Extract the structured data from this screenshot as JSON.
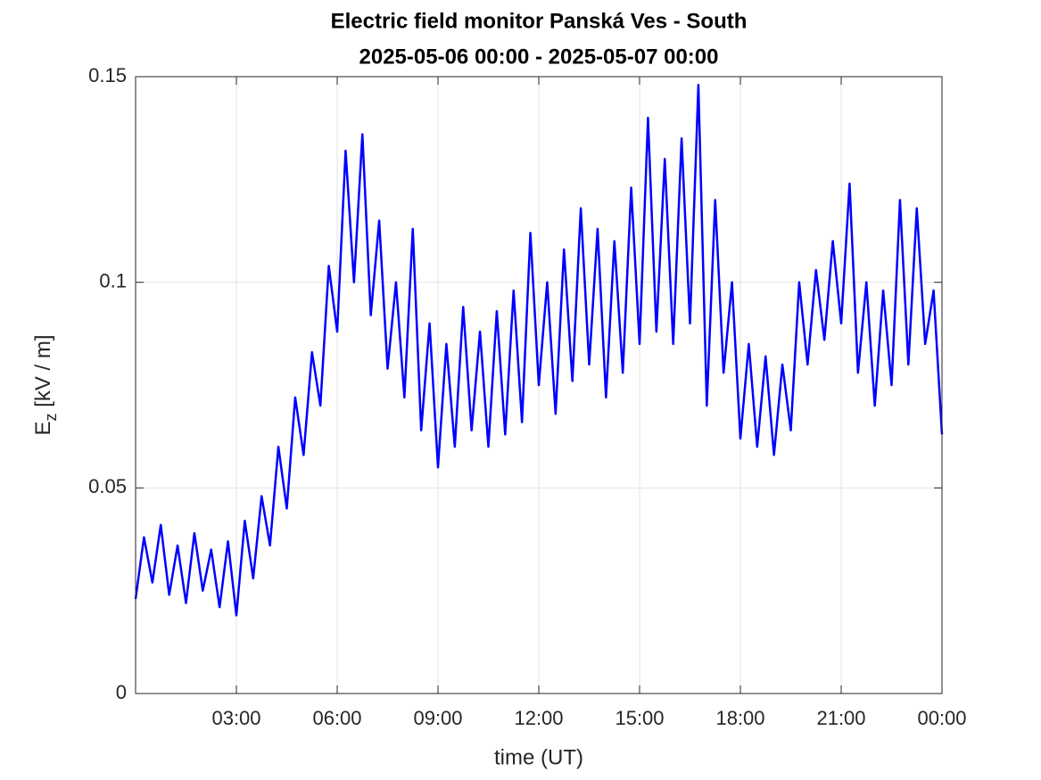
{
  "chart_data": {
    "type": "line",
    "title": "Electric field monitor Panská Ves - South",
    "subtitle": "2025-05-06 00:00 - 2025-05-07 00:00",
    "xlabel": "time (UT)",
    "ylabel": [
      "E",
      "z",
      " [kV / m]"
    ],
    "xlim": [
      0,
      24
    ],
    "xticks": [
      {
        "value": 3,
        "label": "03:00"
      },
      {
        "value": 6,
        "label": "06:00"
      },
      {
        "value": 9,
        "label": "09:00"
      },
      {
        "value": 12,
        "label": "12:00"
      },
      {
        "value": 15,
        "label": "15:00"
      },
      {
        "value": 18,
        "label": "18:00"
      },
      {
        "value": 21,
        "label": "21:00"
      },
      {
        "value": 24,
        "label": "00:00"
      }
    ],
    "ylim": [
      0,
      0.15
    ],
    "yticks": [
      0,
      0.05,
      0.1,
      0.15
    ],
    "grid": true,
    "x": [
      0,
      0.25,
      0.5,
      0.75,
      1,
      1.25,
      1.5,
      1.75,
      2,
      2.25,
      2.5,
      2.75,
      3,
      3.25,
      3.5,
      3.75,
      4,
      4.25,
      4.5,
      4.75,
      5,
      5.25,
      5.5,
      5.75,
      6,
      6.25,
      6.5,
      6.75,
      7,
      7.25,
      7.5,
      7.75,
      8,
      8.25,
      8.5,
      8.75,
      9,
      9.25,
      9.5,
      9.75,
      10,
      10.25,
      10.5,
      10.75,
      11,
      11.25,
      11.5,
      11.75,
      12,
      12.25,
      12.5,
      12.75,
      13,
      13.25,
      13.5,
      13.75,
      14,
      14.25,
      14.5,
      14.75,
      15,
      15.25,
      15.5,
      15.75,
      16,
      16.25,
      16.5,
      16.75,
      17,
      17.25,
      17.5,
      17.75,
      18,
      18.25,
      18.5,
      18.75,
      19,
      19.25,
      19.5,
      19.75,
      20,
      20.25,
      20.5,
      20.75,
      21,
      21.25,
      21.5,
      21.75,
      22,
      22.25,
      22.5,
      22.75,
      23,
      23.25,
      23.5,
      23.75,
      24
    ],
    "series": [
      {
        "color": "#0000ff",
        "values": [
          0.023,
          0.038,
          0.027,
          0.041,
          0.024,
          0.036,
          0.022,
          0.039,
          0.025,
          0.035,
          0.021,
          0.037,
          0.019,
          0.042,
          0.028,
          0.048,
          0.036,
          0.06,
          0.045,
          0.072,
          0.058,
          0.083,
          0.07,
          0.104,
          0.088,
          0.132,
          0.1,
          0.136,
          0.092,
          0.115,
          0.079,
          0.1,
          0.072,
          0.113,
          0.064,
          0.09,
          0.055,
          0.085,
          0.06,
          0.094,
          0.064,
          0.088,
          0.06,
          0.093,
          0.063,
          0.098,
          0.066,
          0.112,
          0.075,
          0.1,
          0.068,
          0.108,
          0.076,
          0.118,
          0.08,
          0.113,
          0.072,
          0.11,
          0.078,
          0.123,
          0.085,
          0.14,
          0.088,
          0.13,
          0.085,
          0.135,
          0.09,
          0.148,
          0.07,
          0.12,
          0.078,
          0.1,
          0.062,
          0.085,
          0.06,
          0.082,
          0.058,
          0.08,
          0.064,
          0.1,
          0.08,
          0.103,
          0.086,
          0.11,
          0.09,
          0.124,
          0.078,
          0.1,
          0.07,
          0.098,
          0.075,
          0.12,
          0.08,
          0.118,
          0.085,
          0.098,
          0.063
        ]
      }
    ]
  }
}
